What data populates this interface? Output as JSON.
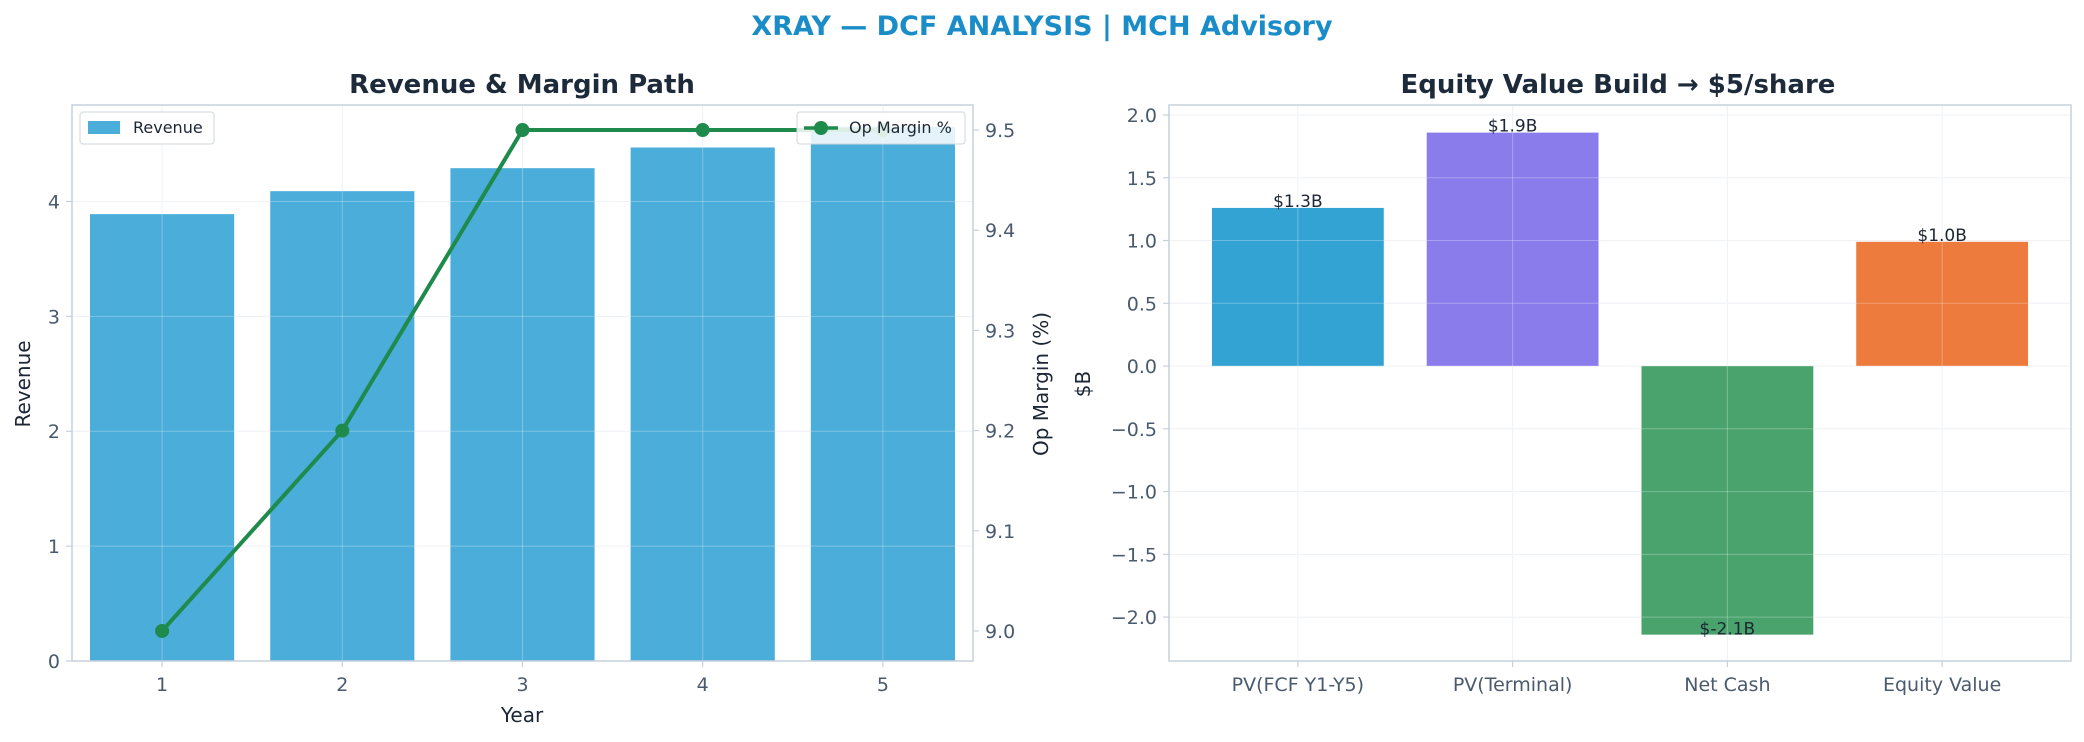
{
  "suptitle": "XRAY — DCF ANALYSIS | MCH Advisory",
  "chart_data": [
    {
      "type": "bar",
      "title": "Revenue & Margin Path",
      "xlabel": "Year",
      "ylabel": "Revenue",
      "y2label": "Op Margin (%)",
      "categories": [
        "1",
        "2",
        "3",
        "4",
        "5"
      ],
      "ylim": [
        0,
        4.84
      ],
      "y2lim": [
        8.97,
        9.525
      ],
      "yticks": [
        0,
        1,
        2,
        3,
        4
      ],
      "y2ticks": [
        9.0,
        9.1,
        9.2,
        9.3,
        9.4,
        9.5
      ],
      "series": [
        {
          "name": "Revenue",
          "type": "bar",
          "axis": "left",
          "color": "#4badd9",
          "values": [
            3.89,
            4.09,
            4.29,
            4.47,
            4.65
          ]
        },
        {
          "name": "Op Margin %",
          "type": "line",
          "axis": "right",
          "color": "#1e8a4c",
          "values": [
            9.0,
            9.2,
            9.5,
            9.5,
            9.5
          ]
        }
      ],
      "legend": [
        "top-left",
        "top-right"
      ],
      "grid": true
    },
    {
      "type": "bar",
      "title": "Equity Value Build → $5/share",
      "xlabel": "",
      "ylabel": "$B",
      "categories": [
        "PV(FCF Y1-Y5)",
        "PV(Terminal)",
        "Net Cash",
        "Equity Value"
      ],
      "values": [
        1.26,
        1.86,
        -2.14,
        0.99
      ],
      "data_labels": [
        "$1.3B",
        "$1.9B",
        "$-2.1B",
        "$1.0B"
      ],
      "colors": [
        "#33a3d4",
        "#8a7deb",
        "#4aa36d",
        "#ec7b3d"
      ],
      "ylim": [
        -2.35,
        2.08
      ],
      "yticks": [
        -2.0,
        -1.5,
        -1.0,
        -0.5,
        0.0,
        0.5,
        1.0,
        1.5,
        2.0
      ],
      "grid": true
    }
  ]
}
